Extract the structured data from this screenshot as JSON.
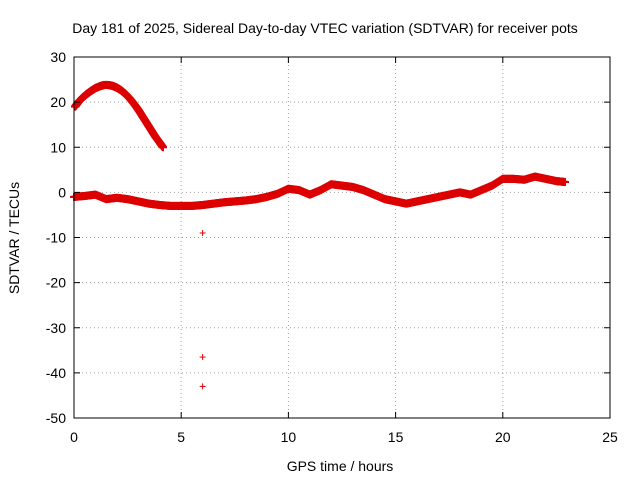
{
  "chart_data": {
    "type": "scatter",
    "title": "Day 181 of 2025, Sidereal Day-to-day VTEC variation (SDTVAR) for receiver pots",
    "xlabel": "GPS time / hours",
    "ylabel": "SDTVAR / TECUs",
    "xlim": [
      0,
      25
    ],
    "ylim": [
      -50,
      30
    ],
    "xticks": [
      0,
      5,
      10,
      15,
      20,
      25
    ],
    "yticks": [
      -50,
      -40,
      -30,
      -20,
      -10,
      0,
      10,
      20,
      30
    ],
    "grid": true,
    "marker": "+",
    "series": [
      {
        "name": "arc-1",
        "color": "#dd0000",
        "x": [
          0.05,
          0.2,
          0.4,
          0.6,
          0.8,
          1.0,
          1.2,
          1.4,
          1.6,
          1.8,
          2.0,
          2.2,
          2.4,
          2.6,
          2.8,
          3.0,
          3.2,
          3.4,
          3.6,
          3.8,
          4.0,
          4.15
        ],
        "y": [
          19.0,
          20.0,
          21.0,
          21.8,
          22.5,
          23.1,
          23.5,
          23.8,
          23.8,
          23.6,
          23.2,
          22.6,
          21.8,
          20.8,
          19.6,
          18.3,
          16.8,
          15.3,
          13.8,
          12.3,
          11.0,
          10.0
        ]
      },
      {
        "name": "arc-2",
        "color": "#dd0000",
        "x": [
          0.0,
          0.5,
          1.0,
          1.5,
          2.0,
          2.5,
          3.0,
          3.5,
          4.0,
          4.5,
          5.0,
          5.5,
          6.0,
          6.5,
          7.0,
          7.5,
          8.0,
          8.5,
          9.0,
          9.5,
          10.0,
          10.5,
          11.0,
          11.5,
          12.0,
          12.5,
          13.0,
          13.5,
          14.0,
          14.5,
          15.0,
          15.5,
          16.0,
          16.5,
          17.0,
          17.5,
          18.0,
          18.5,
          19.0,
          19.5,
          20.0,
          20.5,
          21.0,
          21.5,
          22.0,
          22.5,
          22.9
        ],
        "y": [
          -1.0,
          -0.8,
          -0.5,
          -1.5,
          -1.2,
          -1.5,
          -2.0,
          -2.5,
          -2.8,
          -3.0,
          -3.0,
          -3.0,
          -2.8,
          -2.5,
          -2.2,
          -2.0,
          -1.8,
          -1.5,
          -1.0,
          -0.3,
          0.8,
          0.5,
          -0.5,
          0.5,
          1.8,
          1.5,
          1.2,
          0.5,
          -0.5,
          -1.5,
          -2.0,
          -2.5,
          -2.0,
          -1.5,
          -1.0,
          -0.5,
          0.0,
          -0.5,
          0.5,
          1.5,
          3.0,
          3.0,
          2.8,
          3.5,
          3.0,
          2.5,
          2.3
        ]
      },
      {
        "name": "outliers",
        "color": "#dd0000",
        "x": [
          6.0,
          6.0,
          6.0
        ],
        "y": [
          -9.0,
          -36.5,
          -43.0
        ]
      }
    ]
  }
}
